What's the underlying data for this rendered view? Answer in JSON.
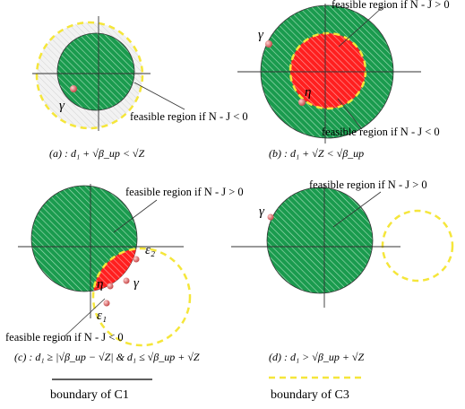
{
  "colors": {
    "green": "#1a9b4e",
    "red": "#ff1f1f",
    "yellow_dashed": "#f5e63a",
    "gray_region": "#e4e4e4",
    "point": "#e88a8a"
  },
  "panels": [
    {
      "id": "a",
      "label": "feasible region if N - J < 0",
      "point": "γ",
      "caption": "(a) : d₁ + √β_up < √Z"
    },
    {
      "id": "b",
      "label_top": "feasible region if N - J > 0",
      "label_bottom": "feasible region if N - J < 0",
      "point_gamma": "γ",
      "point_eta": "η",
      "caption": "(b) : d₁ + √Z < √β_up"
    },
    {
      "id": "c",
      "label_top": "feasible region if N - J > 0",
      "label_bottom": "feasible region if N - J < 0",
      "point_eta": "η",
      "point_gamma": "γ",
      "eps1": "ε₁",
      "eps2": "ε₂",
      "caption": "(c) : d₁ ≥ |√β_up − √Z| & d₁ ≤ √β_up + √Z"
    },
    {
      "id": "d",
      "label_top": "feasible region if N - J > 0",
      "point_gamma": "γ",
      "caption": "(d) : d₁ > √β_up + √Z"
    }
  ],
  "legend": {
    "c1": "boundary of C1",
    "c3": "boundary of C3"
  }
}
